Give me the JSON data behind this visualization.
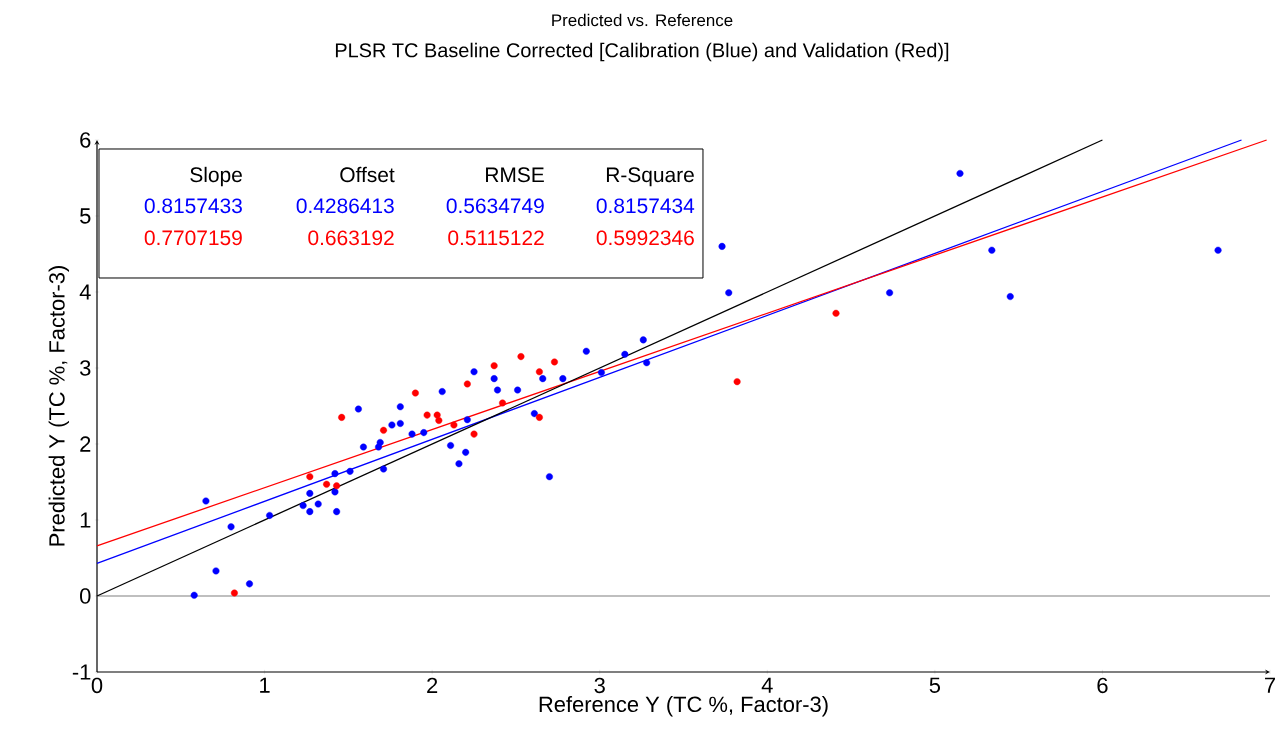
{
  "chart_data": {
    "type": "scatter",
    "title": "Predicted vs. Reference",
    "subtitle": "PLSR TC Baseline Corrected [Calibration (Blue) and Validation (Red)]",
    "xlabel": "Reference Y (TC %, Factor-3)",
    "ylabel": "Predicted Y (TC %, Factor-3)",
    "xlim": [
      0,
      7
    ],
    "ylim": [
      -1,
      6
    ],
    "xticks": [
      0,
      1,
      2,
      3,
      4,
      5,
      6,
      7
    ],
    "yticks": [
      -1,
      0,
      1,
      2,
      3,
      4,
      5,
      6
    ],
    "grid": false,
    "marker": "circle",
    "annotations": [
      "Slope",
      "Offset",
      "RMSE",
      "R-Square",
      "0.8157433",
      "0.4286413",
      "0.5634749",
      "0.8157434",
      "0.7707159",
      "0.663192",
      "0.5115122",
      "0.5992346"
    ],
    "ref_lines": [
      {
        "axis": "y",
        "value": 0,
        "color": "#808080"
      }
    ],
    "series": [
      {
        "color": "#0000ff",
        "x": [
          0.58,
          0.71,
          0.91,
          0.8,
          0.65,
          1.03,
          1.42,
          1.27,
          1.23,
          1.27,
          1.32,
          1.42,
          1.43,
          1.51,
          1.56,
          1.59,
          1.68,
          1.69,
          1.71,
          1.76,
          1.81,
          1.81,
          1.88,
          1.95,
          2.06,
          2.11,
          2.16,
          2.2,
          2.21,
          2.25,
          2.37,
          2.39,
          2.51,
          2.61,
          2.66,
          2.7,
          2.78,
          2.92,
          3.01,
          3.15,
          3.26,
          3.28,
          3.73,
          3.77,
          4.73,
          5.15,
          5.34,
          5.45,
          6.69
        ],
        "values": [
          0.01,
          0.33,
          0.16,
          0.91,
          1.25,
          1.06,
          1.61,
          1.35,
          1.19,
          1.11,
          1.21,
          1.37,
          1.11,
          1.64,
          2.46,
          1.96,
          1.96,
          2.02,
          1.67,
          2.25,
          2.27,
          2.49,
          2.13,
          2.15,
          2.69,
          1.98,
          1.74,
          1.89,
          2.32,
          2.95,
          2.86,
          2.71,
          2.71,
          2.4,
          2.86,
          1.57,
          2.86,
          3.22,
          2.94,
          3.18,
          3.37,
          3.07,
          4.6,
          3.99,
          3.99,
          5.56,
          4.55,
          3.94,
          4.55
        ]
      },
      {
        "color": "#ff0000",
        "x": [
          0.82,
          1.27,
          1.37,
          1.43,
          1.46,
          1.71,
          1.9,
          1.97,
          2.03,
          2.04,
          2.13,
          2.21,
          2.25,
          2.37,
          2.42,
          2.53,
          2.64,
          2.64,
          2.73,
          3.82,
          4.41
        ],
        "values": [
          0.04,
          1.57,
          1.47,
          1.45,
          2.35,
          2.18,
          2.67,
          2.38,
          2.38,
          2.31,
          2.25,
          2.79,
          2.13,
          3.03,
          2.54,
          3.15,
          2.35,
          2.95,
          3.08,
          2.82,
          3.72
        ]
      },
      {
        "type": "line",
        "color": "#0000ff",
        "marker": "none",
        "x": [
          0,
          6.83
        ],
        "values": [
          0.43,
          6.0
        ]
      },
      {
        "type": "line",
        "color": "#ff0000",
        "marker": "none",
        "x": [
          0,
          6.98
        ],
        "values": [
          0.66,
          6.0
        ]
      },
      {
        "type": "line",
        "color": "#000000",
        "marker": "none",
        "x": [
          0,
          6
        ],
        "values": [
          0,
          6
        ]
      }
    ]
  }
}
